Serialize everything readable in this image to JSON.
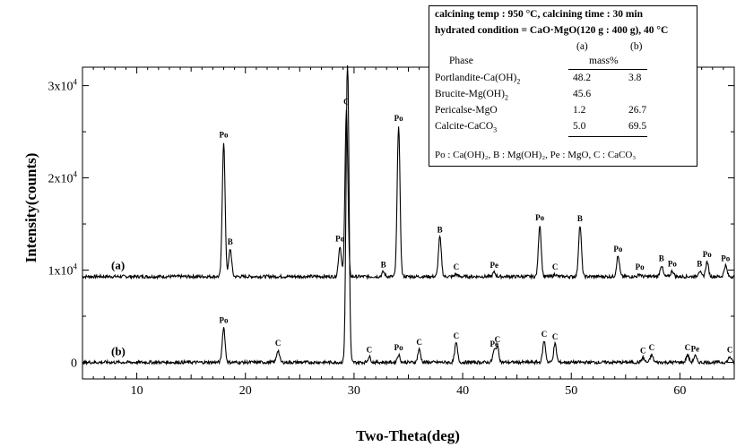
{
  "chart_data": {
    "type": "line",
    "xlabel": "Two-Theta(deg)",
    "ylabel": "Intensity(counts)",
    "xlim": [
      5,
      65
    ],
    "ylim": [
      -1800,
      32000
    ],
    "x_ticks": [
      10,
      20,
      30,
      40,
      50,
      60
    ],
    "y_ticks": [
      {
        "value": 0,
        "mantissa": "0",
        "exp": ""
      },
      {
        "value": 10000,
        "mantissa": "1x10",
        "exp": "4"
      },
      {
        "value": 20000,
        "mantissa": "2x10",
        "exp": "4"
      },
      {
        "value": 30000,
        "mantissa": "3x10",
        "exp": "4"
      }
    ],
    "grid": false,
    "series": [
      {
        "label": "(a)",
        "baseline": 9300,
        "peaks": [
          {
            "x": 18.0,
            "y": 23900,
            "label": "Po"
          },
          {
            "x": 18.6,
            "y": 12300,
            "label": "B"
          },
          {
            "x": 28.7,
            "y": 12600,
            "label": "Po"
          },
          {
            "x": 29.3,
            "y": 27500,
            "label": "C"
          },
          {
            "x": 32.7,
            "y": 9800,
            "label": "B"
          },
          {
            "x": 34.1,
            "y": 25700,
            "label": "Po"
          },
          {
            "x": 37.9,
            "y": 13600,
            "label": "B"
          },
          {
            "x": 39.4,
            "y": 9550,
            "label": "C"
          },
          {
            "x": 42.9,
            "y": 9750,
            "label": "Pe"
          },
          {
            "x": 47.1,
            "y": 14900,
            "label": "Po"
          },
          {
            "x": 48.5,
            "y": 9550,
            "label": "C"
          },
          {
            "x": 50.8,
            "y": 14800,
            "label": "B"
          },
          {
            "x": 54.3,
            "y": 11500,
            "label": "Po"
          },
          {
            "x": 56.3,
            "y": 9550,
            "label": "Po"
          },
          {
            "x": 58.3,
            "y": 10500,
            "label": "B"
          },
          {
            "x": 59.3,
            "y": 9900,
            "label": "Po"
          },
          {
            "x": 61.8,
            "y": 9900,
            "label": "B"
          },
          {
            "x": 62.5,
            "y": 10900,
            "label": "Po"
          },
          {
            "x": 64.2,
            "y": 10500,
            "label": "Po"
          }
        ]
      },
      {
        "label": "(b)",
        "baseline": 0,
        "peaks": [
          {
            "x": 18.0,
            "y": 3800,
            "label": "Po"
          },
          {
            "x": 23.0,
            "y": 1300,
            "label": "C"
          },
          {
            "x": 29.4,
            "y": 33000,
            "label": ""
          },
          {
            "x": 31.4,
            "y": 600,
            "label": "C"
          },
          {
            "x": 34.1,
            "y": 800,
            "label": "Po"
          },
          {
            "x": 36.0,
            "y": 1400,
            "label": "C"
          },
          {
            "x": 39.4,
            "y": 2100,
            "label": "C"
          },
          {
            "x": 42.9,
            "y": 1200,
            "label": "Pe"
          },
          {
            "x": 43.2,
            "y": 1700,
            "label": "C"
          },
          {
            "x": 47.5,
            "y": 2300,
            "label": "C"
          },
          {
            "x": 48.5,
            "y": 2000,
            "label": "C"
          },
          {
            "x": 56.6,
            "y": 500,
            "label": "C"
          },
          {
            "x": 57.4,
            "y": 800,
            "label": "C"
          },
          {
            "x": 60.7,
            "y": 800,
            "label": "C"
          },
          {
            "x": 61.4,
            "y": 700,
            "label": "Pe"
          },
          {
            "x": 64.6,
            "y": 600,
            "label": "C"
          }
        ]
      }
    ]
  },
  "info_box": {
    "line1": "calcining temp : 950 °C, calcining time : 30 min",
    "line2": "hydrated condition = CaO·MgO(120 g : 400 g), 40 °C",
    "col_a": "(a)",
    "col_b": "(b)",
    "phase_header": "Phase",
    "unit_header": "mass%",
    "rows": [
      {
        "phase": "Portlandite-Ca(OH)",
        "sub": "2",
        "a": "48.2",
        "b": "3.8"
      },
      {
        "phase": "Brucite-Mg(OH)",
        "sub": "2",
        "a": "45.6",
        "b": ""
      },
      {
        "phase": "Pericalse-MgO",
        "sub": "",
        "a": "1.2",
        "b": "26.7"
      },
      {
        "phase": "Calcite-CaCO",
        "sub": "3",
        "a": "5.0",
        "b": "69.5"
      }
    ],
    "legend": "Po : Ca(OH)₂, B : Mg(OH)₂, Pe : MgO, C : CaCO₃"
  }
}
